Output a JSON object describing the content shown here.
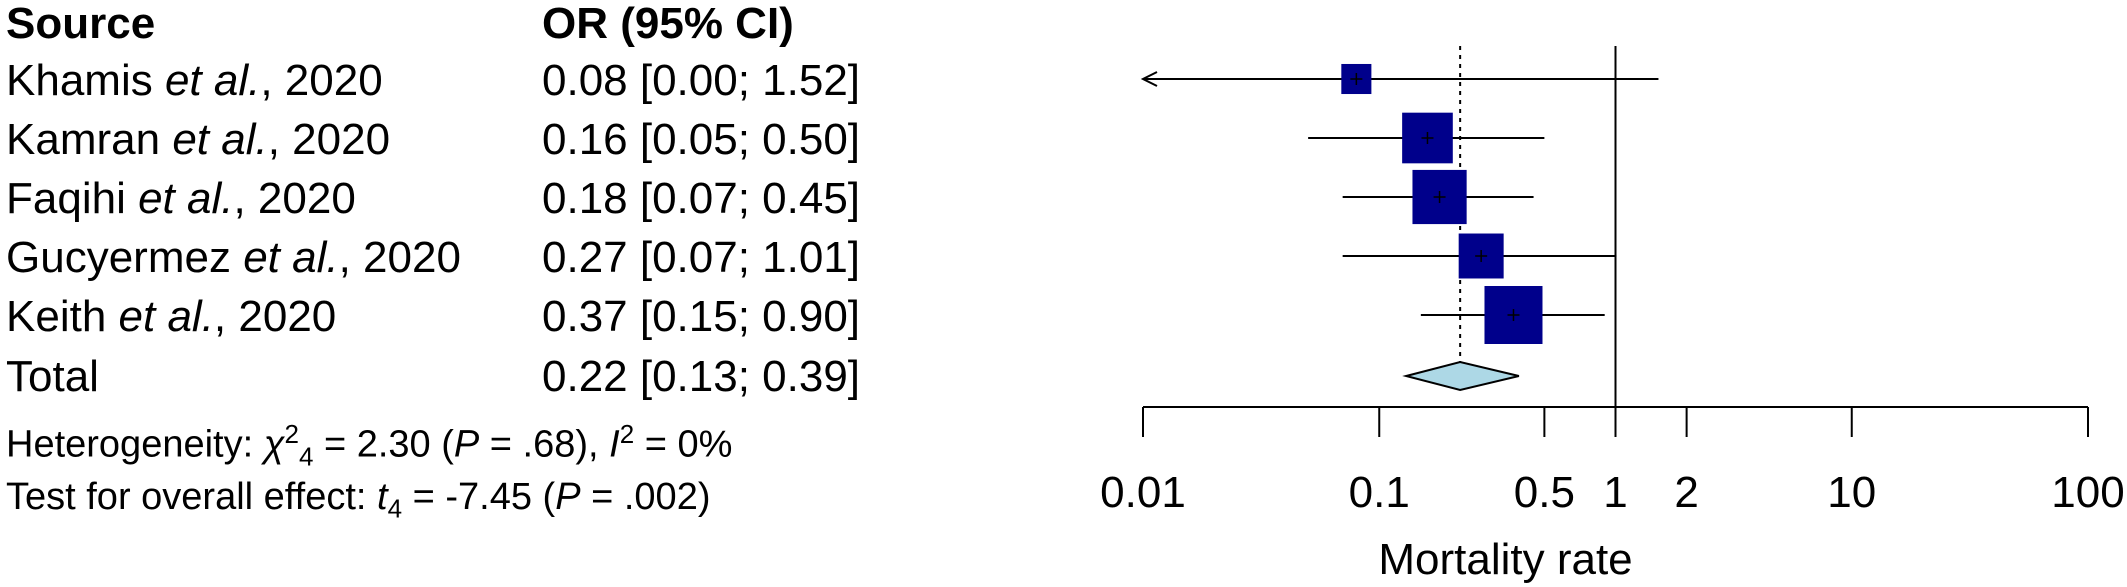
{
  "table": {
    "header_source": "Source",
    "header_or": "OR (95% CI)",
    "rows": [
      {
        "author": "Khamis",
        "etal": "et al.",
        "year": ", 2020",
        "ci_text": "0.08 [0.00; 1.52]"
      },
      {
        "author": "Kamran",
        "etal": "et al.",
        "year": ", 2020",
        "ci_text": "0.16 [0.05; 0.50]"
      },
      {
        "author": "Faqihi",
        "etal": "et al.",
        "year": ", 2020",
        "ci_text": "0.18 [0.07; 0.45]"
      },
      {
        "author": "Gucyermez",
        "etal": "et al.",
        "year": ", 2020",
        "ci_text": "0.27 [0.07; 1.01]"
      },
      {
        "author": "Keith",
        "etal": "et al.",
        "year": ", 2020",
        "ci_text": "0.37 [0.15; 0.90]"
      }
    ],
    "total_label": "Total",
    "total_ci_text": "0.22 [0.13; 0.39]"
  },
  "heterogeneity": {
    "prefix": "Heterogeneity: ",
    "chi": "χ",
    "chi_sup": "2",
    "chi_sub": "4",
    "mid": " = 2.30 (",
    "p": "P",
    "p_text": " = .68), ",
    "i": "I",
    "i_sup": "2",
    "i_text": " = 0%"
  },
  "overall": {
    "prefix": "Test for overall effect: ",
    "t": "t",
    "t_sub": "4",
    "mid": " = -7.45 (",
    "p": "P",
    "p_text": " = .002)"
  },
  "chart_data": {
    "type": "forest",
    "xlabel": "Mortality rate",
    "xscale": "log",
    "xlim": [
      0.01,
      100
    ],
    "ticks": [
      0.01,
      0.1,
      0.5,
      1,
      2,
      10,
      100
    ],
    "tick_labels": [
      "0.01",
      "0.1",
      "0.5",
      "1",
      "2",
      "10",
      "100"
    ],
    "null_line": 1,
    "pooled_line": 0.22,
    "studies": [
      {
        "label": "Khamis et al., 2020",
        "or": 0.08,
        "lower": 0.0,
        "upper": 1.52,
        "weight": 3
      },
      {
        "label": "Kamran et al., 2020",
        "or": 0.16,
        "lower": 0.05,
        "upper": 0.5,
        "weight": 22
      },
      {
        "label": "Faqihi et al., 2020",
        "or": 0.18,
        "lower": 0.07,
        "upper": 0.45,
        "weight": 27
      },
      {
        "label": "Gucyermez et al., 2020",
        "or": 0.27,
        "lower": 0.07,
        "upper": 1.01,
        "weight": 15
      },
      {
        "label": "Keith et al., 2020",
        "or": 0.37,
        "lower": 0.15,
        "upper": 0.9,
        "weight": 33
      }
    ],
    "pooled": {
      "label": "Total",
      "or": 0.22,
      "lower": 0.13,
      "upper": 0.39
    },
    "colors": {
      "box": "#00008b",
      "diamond": "#add8e6",
      "line": "#000000"
    }
  }
}
